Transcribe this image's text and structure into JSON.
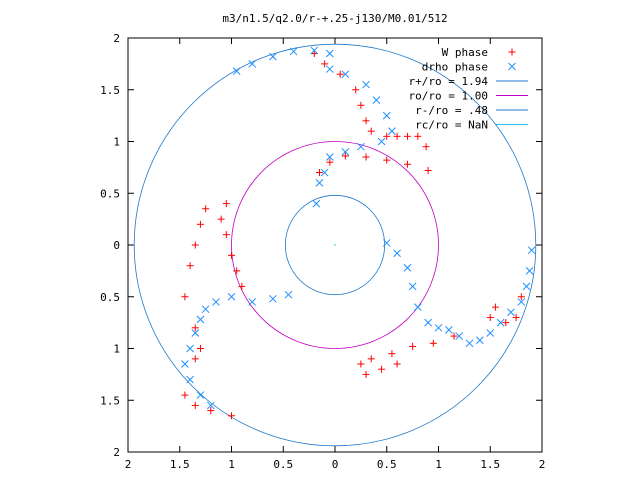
{
  "chart_data": {
    "type": "scatter",
    "title": "m3/n1.5/q2.0/r-+.25-j130/M0.01/512",
    "xlabel": "",
    "ylabel": "",
    "xlim": [
      -2,
      2
    ],
    "ylim": [
      -2,
      2
    ],
    "x_tick_labels": [
      "2",
      "1.5",
      "1",
      "0.5",
      "0",
      "0.5",
      "1",
      "1.5",
      "2"
    ],
    "x_tick_values": [
      -2,
      -1.5,
      -1,
      -0.5,
      0,
      0.5,
      1,
      1.5,
      2
    ],
    "y_tick_labels": [
      "2",
      "1.5",
      "1",
      "0.5",
      "0",
      "0.5",
      "1",
      "1.5",
      "2"
    ],
    "y_tick_values": [
      2,
      1.5,
      1,
      0.5,
      0,
      -0.5,
      -1,
      -1.5,
      -2
    ],
    "grid": false,
    "legend_position": "top-right",
    "series": [
      {
        "name": "W phase",
        "marker": "+",
        "color": "#ff0000",
        "points": [
          [
            -0.2,
            1.85
          ],
          [
            -0.1,
            1.75
          ],
          [
            0.05,
            1.65
          ],
          [
            0.2,
            1.5
          ],
          [
            0.25,
            1.35
          ],
          [
            0.3,
            1.2
          ],
          [
            0.35,
            1.1
          ],
          [
            0.5,
            1.05
          ],
          [
            0.6,
            1.05
          ],
          [
            0.7,
            1.05
          ],
          [
            0.8,
            1.05
          ],
          [
            0.88,
            0.95
          ],
          [
            0.9,
            0.72
          ],
          [
            0.7,
            0.78
          ],
          [
            0.5,
            0.82
          ],
          [
            0.3,
            0.85
          ],
          [
            0.1,
            0.86
          ],
          [
            -0.05,
            0.8
          ],
          [
            -0.15,
            0.7
          ],
          [
            1.15,
            -0.88
          ],
          [
            0.95,
            -0.95
          ],
          [
            0.75,
            -0.98
          ],
          [
            0.55,
            -1.05
          ],
          [
            0.35,
            -1.1
          ],
          [
            0.25,
            -1.15
          ],
          [
            0.3,
            -1.25
          ],
          [
            0.45,
            -1.2
          ],
          [
            0.6,
            -1.15
          ],
          [
            1.8,
            -0.5
          ],
          [
            1.75,
            -0.7
          ],
          [
            1.65,
            -0.75
          ],
          [
            1.55,
            -0.6
          ],
          [
            1.5,
            -0.7
          ],
          [
            -1.05,
            0.4
          ],
          [
            -1.1,
            0.25
          ],
          [
            -1.05,
            0.1
          ],
          [
            -1.0,
            -0.1
          ],
          [
            -0.95,
            -0.25
          ],
          [
            -0.9,
            -0.4
          ],
          [
            -1.25,
            0.35
          ],
          [
            -1.3,
            0.2
          ],
          [
            -1.35,
            0.0
          ],
          [
            -1.4,
            -0.2
          ],
          [
            -1.45,
            -0.5
          ],
          [
            -1.35,
            -0.8
          ],
          [
            -1.3,
            -1.0
          ],
          [
            -1.35,
            -1.1
          ],
          [
            -1.45,
            -1.45
          ],
          [
            -1.35,
            -1.55
          ],
          [
            -1.2,
            -1.6
          ],
          [
            -1.0,
            -1.65
          ]
        ]
      },
      {
        "name": "drho phase",
        "marker": "x",
        "color": "#1e90ff",
        "points": [
          [
            -0.95,
            1.68
          ],
          [
            -0.8,
            1.75
          ],
          [
            -0.6,
            1.82
          ],
          [
            -0.4,
            1.87
          ],
          [
            -0.2,
            1.88
          ],
          [
            -0.05,
            1.85
          ],
          [
            -0.05,
            1.7
          ],
          [
            0.1,
            1.65
          ],
          [
            0.3,
            1.55
          ],
          [
            0.4,
            1.4
          ],
          [
            0.5,
            1.25
          ],
          [
            0.55,
            1.1
          ],
          [
            0.45,
            1.0
          ],
          [
            0.25,
            0.95
          ],
          [
            0.1,
            0.9
          ],
          [
            -0.05,
            0.85
          ],
          [
            -0.1,
            0.7
          ],
          [
            -0.15,
            0.6
          ],
          [
            -0.18,
            0.4
          ],
          [
            0.5,
            0.02
          ],
          [
            0.6,
            -0.08
          ],
          [
            0.7,
            -0.22
          ],
          [
            0.75,
            -0.4
          ],
          [
            0.8,
            -0.6
          ],
          [
            0.9,
            -0.75
          ],
          [
            1.0,
            -0.8
          ],
          [
            1.1,
            -0.82
          ],
          [
            1.2,
            -0.88
          ],
          [
            1.3,
            -0.95
          ],
          [
            1.4,
            -0.92
          ],
          [
            1.5,
            -0.85
          ],
          [
            1.6,
            -0.75
          ],
          [
            1.7,
            -0.65
          ],
          [
            1.8,
            -0.55
          ],
          [
            1.85,
            -0.4
          ],
          [
            1.88,
            -0.25
          ],
          [
            1.9,
            -0.05
          ],
          [
            -0.45,
            -0.48
          ],
          [
            -0.6,
            -0.52
          ],
          [
            -0.8,
            -0.55
          ],
          [
            -1.0,
            -0.5
          ],
          [
            -1.15,
            -0.55
          ],
          [
            -1.25,
            -0.62
          ],
          [
            -1.3,
            -0.72
          ],
          [
            -1.35,
            -0.85
          ],
          [
            -1.4,
            -1.0
          ],
          [
            -1.45,
            -1.15
          ],
          [
            -1.4,
            -1.3
          ],
          [
            -1.3,
            -1.45
          ],
          [
            -1.2,
            -1.55
          ]
        ]
      }
    ],
    "circles": [
      {
        "name": "r+/ro = 1.94",
        "radius": 1.94,
        "color": "#1f78c8"
      },
      {
        "name": "ro/ro = 1.00",
        "radius": 1.0,
        "color": "#c000c0"
      },
      {
        "name": "r-/ro = .48",
        "radius": 0.48,
        "color": "#1f78c8"
      },
      {
        "name": "rc/ro = NaN",
        "radius": null,
        "color": "#20c0e0"
      }
    ]
  }
}
